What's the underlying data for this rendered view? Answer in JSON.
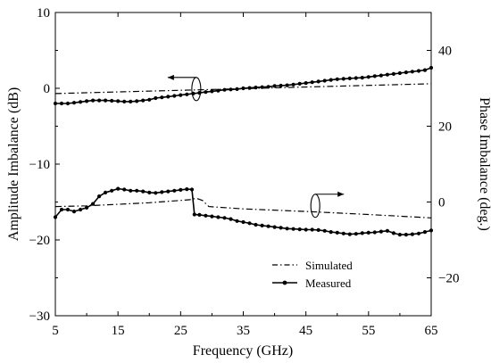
{
  "chart_data": {
    "type": "line",
    "title": "",
    "xlabel": "Frequency (GHz)",
    "ylabel_left": "Amplitude Imbalance (dB)",
    "ylabel_right": "Phase Imbalance (deg.)",
    "xlim": [
      5,
      65
    ],
    "ylim_left": [
      -30,
      10
    ],
    "ylim_right": [
      -30,
      50
    ],
    "xticks": [
      "5",
      "15",
      "25",
      "35",
      "45",
      "55",
      "65"
    ],
    "yticks_left": [
      "10",
      "0",
      "−10",
      "−20",
      "−30"
    ],
    "yticks_right": [
      "40",
      "20",
      "0",
      "−20"
    ],
    "grid": false,
    "legend_position": "bottom-right",
    "legend": [
      "Simulated",
      "Measured"
    ],
    "series": [
      {
        "name": "Simulated",
        "quantity": "amplitude imbalance",
        "axis": "left",
        "style": "dash-dot",
        "x": [
          5,
          65
        ],
        "y": [
          -0.7,
          0.6
        ]
      },
      {
        "name": "Measured",
        "quantity": "amplitude imbalance",
        "axis": "left",
        "style": "solid-dots",
        "x": [
          5,
          6,
          7,
          8,
          9,
          10,
          11,
          12,
          13,
          14,
          15,
          16,
          17,
          18,
          19,
          20,
          21,
          22,
          23,
          24,
          25,
          26,
          27,
          28,
          29,
          30,
          31,
          32,
          33,
          34,
          35,
          36,
          37,
          38,
          39,
          40,
          41,
          42,
          43,
          44,
          45,
          46,
          47,
          48,
          49,
          50,
          51,
          52,
          53,
          54,
          55,
          56,
          57,
          58,
          59,
          60,
          61,
          62,
          63,
          64,
          65
        ],
        "y": [
          -2.0,
          -2.0,
          -2.0,
          -1.9,
          -1.8,
          -1.7,
          -1.6,
          -1.6,
          -1.6,
          -1.65,
          -1.7,
          -1.75,
          -1.75,
          -1.7,
          -1.6,
          -1.5,
          -1.3,
          -1.2,
          -1.1,
          -1.0,
          -0.9,
          -0.8,
          -0.7,
          -0.6,
          -0.5,
          -0.4,
          -0.3,
          -0.2,
          -0.15,
          -0.1,
          0.0,
          0.05,
          0.1,
          0.15,
          0.2,
          0.3,
          0.35,
          0.4,
          0.5,
          0.6,
          0.7,
          0.8,
          0.9,
          1.0,
          1.1,
          1.2,
          1.25,
          1.3,
          1.35,
          1.4,
          1.5,
          1.6,
          1.7,
          1.8,
          1.9,
          2.0,
          2.1,
          2.2,
          2.3,
          2.4,
          2.7
        ]
      },
      {
        "name": "Simulated",
        "quantity": "phase imbalance",
        "axis": "right",
        "style": "dash-dot",
        "x": [
          5,
          10,
          20,
          26.5,
          27.5,
          28.5,
          29.5,
          35,
          45,
          55,
          65
        ],
        "y": [
          -1.2,
          -1.0,
          -0.2,
          0.6,
          1.0,
          0.4,
          -1.2,
          -1.8,
          -2.5,
          -3.3,
          -4.2
        ]
      },
      {
        "name": "Measured",
        "quantity": "phase imbalance",
        "axis": "right",
        "style": "solid-dots",
        "x": [
          5,
          6,
          7,
          8,
          9,
          10,
          11,
          12,
          13,
          14,
          15,
          16,
          17,
          18,
          19,
          20,
          21,
          22,
          23,
          24,
          25,
          26,
          26.8,
          27.2,
          28,
          29,
          30,
          31,
          32,
          33,
          34,
          35,
          36,
          37,
          38,
          39,
          40,
          41,
          42,
          43,
          44,
          45,
          46,
          47,
          48,
          49,
          50,
          51,
          52,
          53,
          54,
          55,
          56,
          57,
          58,
          59,
          60,
          61,
          62,
          63,
          64,
          65
        ],
        "y": [
          -4.0,
          -2.0,
          -2.0,
          -2.5,
          -2.0,
          -1.5,
          -0.5,
          1.5,
          2.5,
          3.0,
          3.5,
          3.3,
          3.0,
          3.0,
          2.8,
          2.5,
          2.4,
          2.6,
          2.8,
          3.0,
          3.2,
          3.4,
          3.3,
          -3.3,
          -3.4,
          -3.6,
          -3.8,
          -4.0,
          -4.2,
          -4.5,
          -5.0,
          -5.3,
          -5.6,
          -6.0,
          -6.2,
          -6.4,
          -6.6,
          -6.8,
          -7.0,
          -7.1,
          -7.2,
          -7.3,
          -7.3,
          -7.4,
          -7.6,
          -7.9,
          -8.1,
          -8.3,
          -8.5,
          -8.4,
          -8.2,
          -8.1,
          -8.0,
          -7.8,
          -7.6,
          -8.2,
          -8.6,
          -8.6,
          -8.5,
          -8.3,
          -7.9,
          -7.5
        ]
      }
    ],
    "annotations": [
      {
        "type": "arrow-left",
        "indicates_axis": "left",
        "near_x": 27.5
      },
      {
        "type": "arrow-right",
        "indicates_axis": "right",
        "near_x": 46.5
      }
    ]
  }
}
